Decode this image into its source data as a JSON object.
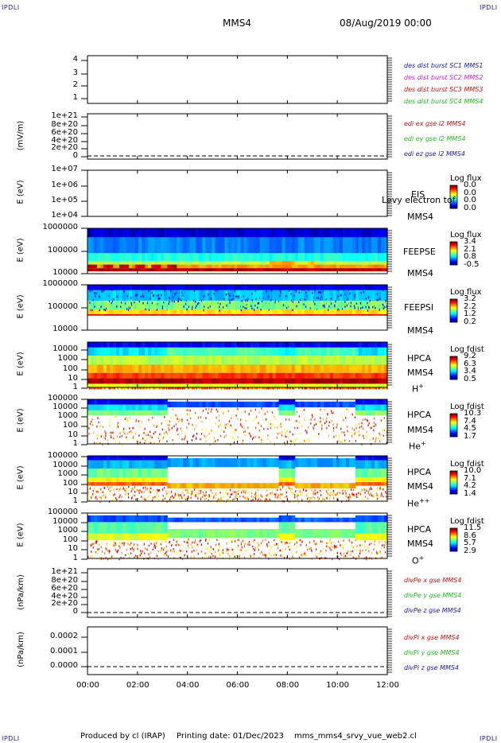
{
  "header": {
    "corner_label": "IPDLI",
    "mission": "MMS4",
    "datetime": "08/Aug/2019 00:00"
  },
  "footer": {
    "produced_by": "Produced by cl (IRAP)",
    "printing_date": "Printing date: 01/Dec/2023",
    "script_name": "mms_mms4_srvy_vue_web2.cl"
  },
  "chart_data": [
    {
      "type": "line",
      "panel": "burst",
      "ylim": [
        0.5,
        4.5
      ],
      "yticks": [
        "4",
        "3",
        "2",
        "1"
      ],
      "legend": [
        {
          "text": "des dist burst SC1 MMS1",
          "color": "#1a1ab3"
        },
        {
          "text": "des dist burst SC2 MMS2",
          "color": "#cc22cc"
        },
        {
          "text": "des dist burst SC3 MMS3",
          "color": "#cc1111"
        },
        {
          "text": "des dist burst SC4 MMS4",
          "color": "#22bb22"
        }
      ]
    },
    {
      "type": "line",
      "panel": "edi",
      "ylabel": "(mV/m)",
      "yticks": [
        "1e+21",
        "8e+20",
        "6e+20",
        "4e+20",
        "2e+20",
        "0"
      ],
      "legend": [
        {
          "text": "edi ex gse l2 MMS4",
          "color": "#cc1111"
        },
        {
          "text": "edi ey gse l2 MMS4",
          "color": "#22bb22"
        },
        {
          "text": "edi ez gse l2 MMS4",
          "color": "#1a1ab3"
        }
      ]
    },
    {
      "type": "heatmap",
      "panel": "eis",
      "ylabel": "E (eV)",
      "yscale": "log",
      "yticks": [
        "1e+07",
        "1e+06",
        "1e+05",
        "1e+04"
      ],
      "labels": [
        "EIS",
        "MMS4"
      ],
      "overlay_text": "Levy electron tof",
      "colorbar": {
        "title": "Log flux",
        "ticks": [
          "0.0",
          "0.0",
          "0.0",
          "0.0"
        ]
      }
    },
    {
      "type": "heatmap",
      "panel": "feepse",
      "ylabel": "E (eV)",
      "yscale": "log",
      "yticks": [
        "1000000",
        "100000",
        "10000"
      ],
      "labels": [
        "FEEPSE",
        "MMS4"
      ],
      "colorbar": {
        "title": "Log flux",
        "ticks": [
          "3.4",
          "2.1",
          "0.8",
          "-0.5"
        ]
      }
    },
    {
      "type": "heatmap",
      "panel": "feepsi",
      "ylabel": "E (eV)",
      "yscale": "log",
      "yticks": [
        "1000000",
        "100000",
        "10000"
      ],
      "labels": [
        "FEEPSI",
        "MMS4"
      ],
      "colorbar": {
        "title": "Log flux",
        "ticks": [
          "3.2",
          "2.2",
          "1.2",
          "0.2"
        ]
      }
    },
    {
      "type": "heatmap",
      "panel": "hpca_h",
      "ylabel": "E (eV)",
      "yscale": "log",
      "yticks": [
        "10000",
        "1000",
        "100",
        "10",
        "1"
      ],
      "labels": [
        "HPCA",
        "MMS4"
      ],
      "species": {
        "base": "H",
        "sup": "+"
      },
      "colorbar": {
        "title": "Log fdist",
        "ticks": [
          "9.2",
          "6.3",
          "3.4",
          "0.5"
        ]
      }
    },
    {
      "type": "heatmap",
      "panel": "hpca_he",
      "ylabel": "E (eV)",
      "yscale": "log",
      "yticks": [
        "100000",
        "10000",
        "1000",
        "100",
        "10",
        "1"
      ],
      "labels": [
        "HPCA",
        "MMS4"
      ],
      "species": {
        "base": "He",
        "sup": "+"
      },
      "colorbar": {
        "title": "Log fdist",
        "ticks": [
          "10.3",
          "7.4",
          "4.5",
          "1.7"
        ]
      }
    },
    {
      "type": "heatmap",
      "panel": "hpca_hepp",
      "ylabel": "E (eV)",
      "yscale": "log",
      "yticks": [
        "100000",
        "10000",
        "1000",
        "100",
        "10",
        "1"
      ],
      "labels": [
        "HPCA",
        "MMS4"
      ],
      "species": {
        "base": "He",
        "sup": "++"
      },
      "colorbar": {
        "title": "Log fdist",
        "ticks": [
          "10.0",
          "7.1",
          "4.2",
          "1.4"
        ]
      }
    },
    {
      "type": "heatmap",
      "panel": "hpca_o",
      "ylabel": "E (eV)",
      "yscale": "log",
      "yticks": [
        "100000",
        "10000",
        "1000",
        "100",
        "10",
        "1"
      ],
      "labels": [
        "HPCA",
        "MMS4"
      ],
      "species": {
        "base": "O",
        "sup": "+"
      },
      "colorbar": {
        "title": "Log fdist",
        "ticks": [
          "11.5",
          "8.6",
          "5.7",
          "2.9"
        ]
      }
    },
    {
      "type": "line",
      "panel": "divpe",
      "ylabel": "(nPa/km)",
      "yticks": [
        "1e+21",
        "8e+20",
        "6e+20",
        "4e+20",
        "2e+20",
        "0"
      ],
      "legend": [
        {
          "text": "divPe x gse MMS4",
          "color": "#cc1111"
        },
        {
          "text": "divPe y gse MMS4",
          "color": "#22bb22"
        },
        {
          "text": "divPe z gse MMS4",
          "color": "#1a1ab3"
        }
      ]
    },
    {
      "type": "line",
      "panel": "divpi",
      "ylabel": "(nPa/km)",
      "yticks": [
        "0.0002",
        "0.0001",
        "0.0000"
      ],
      "legend": [
        {
          "text": "divPi x gse MMS4",
          "color": "#cc1111"
        },
        {
          "text": "divPi y gse MMS4",
          "color": "#22bb22"
        },
        {
          "text": "divPi z gse MMS4",
          "color": "#1a1ab3"
        }
      ],
      "xticks": [
        "00:00",
        "02:00",
        "04:00",
        "06:00",
        "08:00",
        "10:00",
        "12:00"
      ]
    }
  ]
}
